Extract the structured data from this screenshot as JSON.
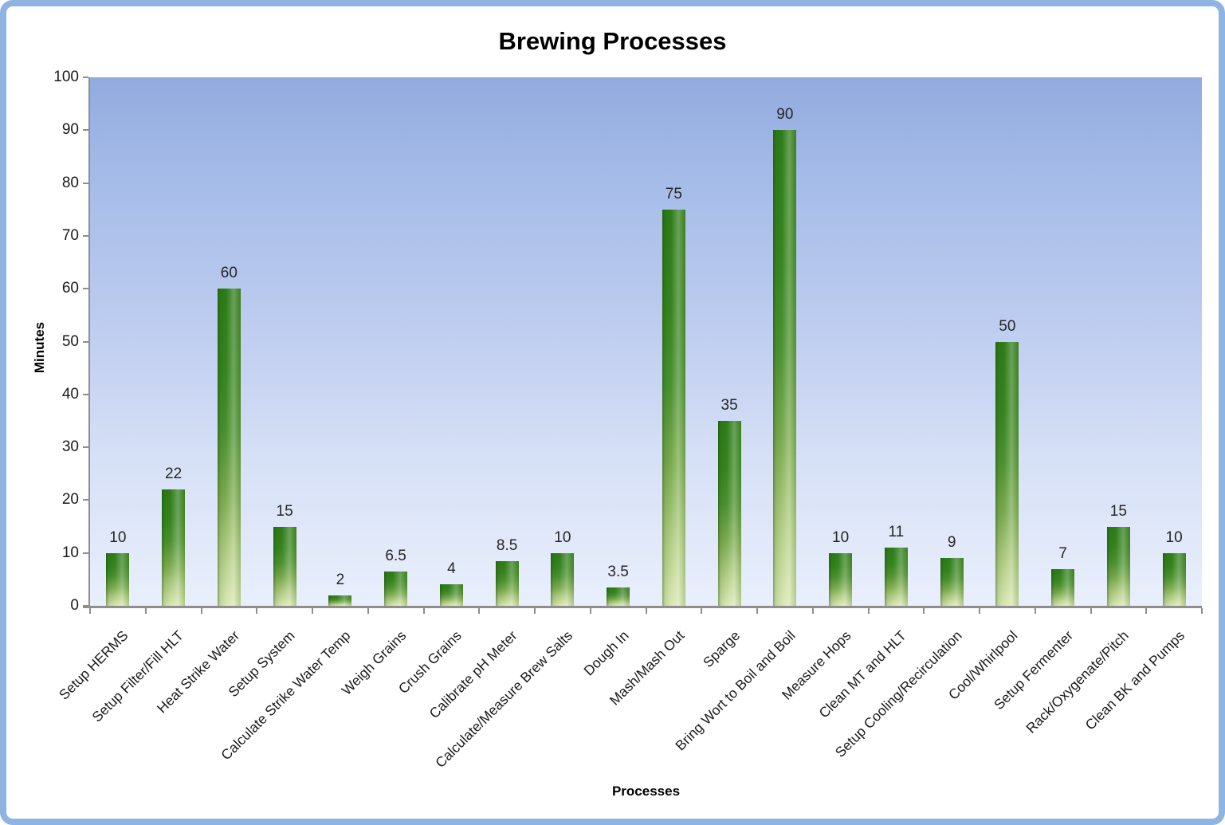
{
  "chart_data": {
    "type": "bar",
    "title": "Brewing Processes",
    "xlabel": "Processes",
    "ylabel": "Minutes",
    "categories": [
      "Setup HERMS",
      "Setup Filter/Fill HLT",
      "Heat Strike Water",
      "Setup System",
      "Calculate Strike Water Temp",
      "Weigh Grains",
      "Crush Grains",
      "Calibrate pH Meter",
      "Calculate/Measure Brew Salts",
      "Dough In",
      "Mash/Mash Out",
      "Sparge",
      "Bring Wort to Boil and Boil",
      "Measure Hops",
      "Clean MT and HLT",
      "Setup Cooling/Recirculation",
      "Cool/Whirlpool",
      "Setup Fermenter",
      "Rack/Oxygenate/Pitch",
      "Clean BK and Pumps"
    ],
    "values": [
      10,
      22,
      60,
      15,
      2,
      6.5,
      4,
      8.5,
      10,
      3.5,
      75,
      35,
      90,
      10,
      11,
      9,
      50,
      7,
      15,
      10
    ],
    "ylim": [
      0,
      100
    ],
    "ytick_step": 10,
    "grid": false,
    "legend": "none",
    "data_labels_shown": true,
    "colors": {
      "bar_dark": "#2E7C19",
      "bar_light": "#D9E7B2",
      "frame_border": "#8DB4E3",
      "plot_top": "#92AADE",
      "plot_bottom": "#E9EFFC",
      "axis_line": "#8E8E8E",
      "text": "#1A1A1A"
    }
  }
}
